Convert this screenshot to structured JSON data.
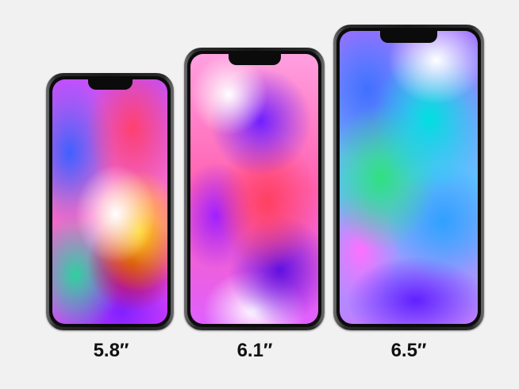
{
  "phones": [
    {
      "size_label": "5.8″"
    },
    {
      "size_label": "6.1″"
    },
    {
      "size_label": "6.5″"
    }
  ]
}
